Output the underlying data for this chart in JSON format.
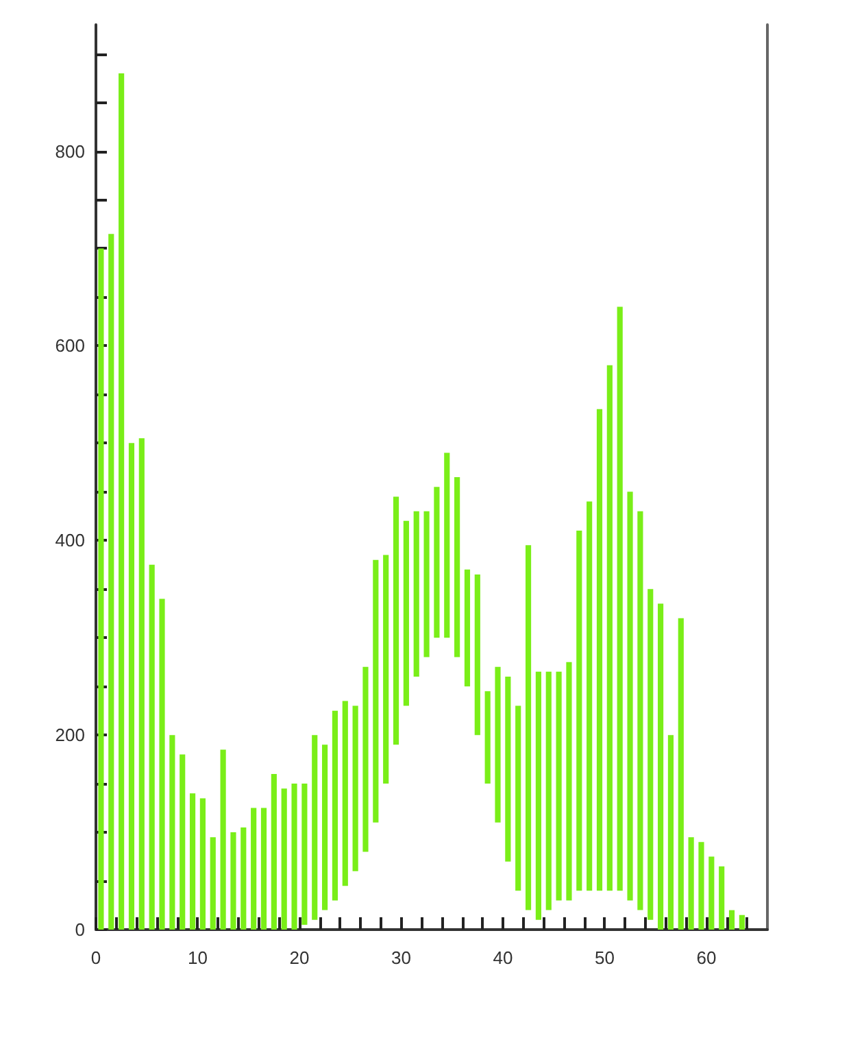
{
  "chart_data": {
    "type": "bar",
    "x": [
      0.5,
      1.5,
      2.5,
      3.5,
      4.5,
      5.5,
      6.5,
      7.5,
      8.5,
      9.5,
      10.5,
      11.5,
      12.5,
      13.5,
      14.5,
      15.5,
      16.5,
      17.5,
      18.5,
      19.5,
      20.5,
      21.5,
      22.5,
      23.5,
      24.5,
      25.5,
      26.5,
      27.5,
      28.5,
      29.5,
      30.5,
      31.5,
      32.5,
      33.5,
      34.5,
      35.5,
      36.5,
      37.5,
      38.5,
      39.5,
      40.5,
      41.5,
      42.5,
      43.5,
      44.5,
      45.5,
      46.5,
      47.5,
      48.5,
      49.5,
      50.5,
      51.5,
      52.5,
      53.5,
      54.5,
      55.5,
      56.5,
      57.5,
      58.5,
      59.5,
      60.5,
      61.5,
      62.5,
      63.5
    ],
    "base": [
      0,
      0,
      0,
      0,
      0,
      0,
      0,
      0,
      0,
      0,
      0,
      0,
      0,
      0,
      0,
      0,
      0,
      0,
      0,
      0,
      5,
      10,
      20,
      30,
      45,
      60,
      80,
      110,
      150,
      190,
      230,
      260,
      280,
      300,
      300,
      280,
      250,
      200,
      150,
      110,
      70,
      40,
      20,
      10,
      20,
      30,
      30,
      40,
      40,
      40,
      40,
      40,
      30,
      20,
      10,
      0,
      0,
      0,
      0,
      0,
      0,
      0,
      0,
      0
    ],
    "values": [
      700,
      715,
      880,
      500,
      505,
      375,
      340,
      200,
      180,
      140,
      135,
      95,
      185,
      100,
      105,
      125,
      125,
      160,
      145,
      150,
      145,
      190,
      170,
      195,
      190,
      170,
      190,
      270,
      235,
      255,
      190,
      170,
      150,
      155,
      190,
      185,
      120,
      165,
      95,
      160,
      190,
      190,
      375,
      255,
      245,
      235,
      245,
      370,
      400,
      495,
      540,
      600,
      420,
      410,
      340,
      335,
      200,
      320,
      95,
      90,
      75,
      65,
      20,
      15
    ],
    "color": "#7aee18",
    "xlim": [
      0,
      66
    ],
    "xticks": [
      0,
      {
        "value": 2,
        "label": null
      },
      {
        "value": 4,
        "label": null
      },
      {
        "value": 6,
        "label": null
      },
      {
        "value": 8,
        "label": null
      },
      10,
      {
        "value": 12,
        "label": null
      },
      {
        "value": 14,
        "label": null
      },
      {
        "value": 16,
        "label": null
      },
      {
        "value": 18,
        "label": null
      },
      20,
      {
        "value": 22,
        "label": null
      },
      {
        "value": 24,
        "label": null
      },
      {
        "value": 26,
        "label": null
      },
      {
        "value": 28,
        "label": null
      },
      30,
      {
        "value": 32,
        "label": null
      },
      {
        "value": 34,
        "label": null
      },
      {
        "value": 36,
        "label": null
      },
      {
        "value": 38,
        "label": null
      },
      40,
      {
        "value": 42,
        "label": null
      },
      {
        "value": 44,
        "label": null
      },
      {
        "value": 46,
        "label": null
      },
      {
        "value": 48,
        "label": null
      },
      50,
      {
        "value": 52,
        "label": null
      },
      {
        "value": 54,
        "label": null
      },
      {
        "value": 56,
        "label": null
      },
      {
        "value": 58,
        "label": null
      },
      60,
      {
        "value": 62,
        "label": null
      },
      {
        "value": 64,
        "label": null
      }
    ],
    "ylim": [
      0,
      930
    ],
    "yticks": [
      0,
      {
        "value": 50,
        "label": null
      },
      {
        "value": 100,
        "label": null
      },
      {
        "value": 150,
        "label": null
      },
      200,
      {
        "value": 250,
        "label": null
      },
      {
        "value": 300,
        "label": null
      },
      {
        "value": 350,
        "label": null
      },
      400,
      {
        "value": 450,
        "label": null
      },
      {
        "value": 500,
        "label": null
      },
      {
        "value": 550,
        "label": null
      },
      600,
      {
        "value": 650,
        "label": null
      },
      {
        "value": 700,
        "label": null
      },
      {
        "value": 750,
        "label": null
      },
      800,
      {
        "value": 850,
        "label": null
      },
      {
        "value": 900,
        "label": null
      }
    ],
    "grid": false
  }
}
